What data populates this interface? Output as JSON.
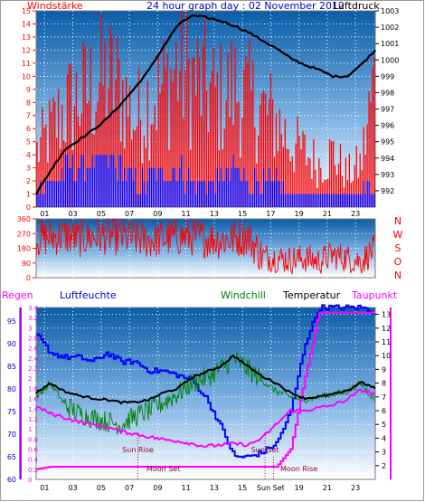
{
  "chart_data": [
    {
      "type": "bar",
      "title": "24 hour graph day : 02 November 2012",
      "left_label": "Windstärke",
      "right_label": "Luftdruck",
      "left_ylim": [
        0,
        15
      ],
      "left_ticks": [
        "0",
        "1",
        "2",
        "3",
        "4",
        "5",
        "6",
        "7",
        "8",
        "9",
        "10",
        "11",
        "12",
        "13",
        "14",
        "15"
      ],
      "right_ylim": [
        991,
        1003
      ],
      "right_ticks": [
        "992",
        "993",
        "994",
        "995",
        "996",
        "997",
        "998",
        "999",
        "1000",
        "1001",
        "1002",
        "1003"
      ],
      "x_ticks": [
        "01",
        "03",
        "05",
        "07",
        "09",
        "11",
        "13",
        "15",
        "17",
        "19",
        "21",
        "23"
      ],
      "grid": true,
      "series": [
        {
          "name": "Windstärke",
          "kind": "gust_bars",
          "color": "#ff0000",
          "x": [
            0,
            1,
            2,
            3,
            4,
            5,
            6,
            7,
            8,
            9,
            10,
            11,
            12,
            13,
            14,
            15,
            16,
            17,
            18,
            19,
            20,
            21,
            22,
            23,
            24
          ],
          "values": [
            5,
            7,
            9,
            10,
            11,
            12,
            11,
            8,
            10,
            11,
            13,
            12,
            11,
            10,
            11,
            10,
            9,
            8,
            6,
            5,
            4,
            5,
            3,
            4,
            12
          ]
        },
        {
          "name": "wind",
          "kind": "mean_bars",
          "color": "#0000ff",
          "x": [
            0,
            1,
            2,
            3,
            4,
            5,
            6,
            7,
            8,
            9,
            10,
            11,
            12,
            13,
            14,
            15,
            16,
            17,
            18,
            19,
            20,
            21,
            22,
            23,
            24
          ],
          "values": [
            2,
            2,
            3,
            3,
            4,
            4,
            3,
            2,
            2,
            3,
            3,
            2,
            2,
            2,
            3,
            2,
            2,
            2,
            1,
            1,
            1,
            1,
            1,
            1,
            2
          ]
        },
        {
          "name": "Luftdruck",
          "kind": "line",
          "color": "#000000",
          "x": [
            0,
            1,
            2,
            3,
            4,
            5,
            6,
            7,
            8,
            9,
            10,
            11,
            12,
            13,
            14,
            15,
            16,
            17,
            18,
            19,
            20,
            21,
            22,
            23,
            24
          ],
          "values": [
            991.8,
            993.2,
            994.5,
            995.1,
            995.7,
            996.4,
            997.3,
            998.3,
            999.4,
            1000.8,
            1002.1,
            1002.7,
            1002.6,
            1002.4,
            1002.1,
            1001.7,
            1001.2,
            1000.7,
            1000.1,
            999.7,
            999.4,
            999.0,
            999.0,
            999.7,
            1000.6
          ]
        }
      ]
    },
    {
      "type": "line",
      "title": "",
      "right_labels": [
        "N",
        "W",
        "S",
        "O",
        "N"
      ],
      "ylim": [
        0,
        360
      ],
      "y_ticks": [
        "0",
        "90",
        "180",
        "270",
        "360"
      ],
      "grid": true,
      "series": [
        {
          "name": "wind direction",
          "color": "#ff0000",
          "x": [
            0,
            1,
            2,
            3,
            4,
            5,
            6,
            7,
            8,
            9,
            10,
            11,
            12,
            13,
            14,
            15,
            16,
            17,
            18,
            19,
            20,
            21,
            22,
            23,
            24
          ],
          "values": [
            240,
            250,
            260,
            240,
            250,
            260,
            250,
            240,
            230,
            240,
            250,
            250,
            240,
            230,
            240,
            250,
            130,
            120,
            110,
            120,
            100,
            140,
            120,
            100,
            180
          ]
        }
      ]
    },
    {
      "type": "line",
      "labels": {
        "regen": "Regen",
        "luftfeuchte": "Luftfeuchte",
        "windchill": "Windchill",
        "temperatur": "Temperatur",
        "taupunkt": "Taupunkt"
      },
      "rain_ylim": [
        0,
        3.4
      ],
      "rain_ticks": [
        "0",
        "0.2",
        "0.4",
        "0.6",
        "0.8",
        "1",
        "1.2",
        "1.4",
        "1.6",
        "1.8",
        "2",
        "2.2",
        "2.4",
        "2.6",
        "2.8",
        "3",
        "3.2",
        "3.4"
      ],
      "humidity_ylim": [
        60,
        98
      ],
      "humidity_ticks": [
        "60",
        "65",
        "70",
        "75",
        "80",
        "85",
        "90",
        "95"
      ],
      "temp_ylim": [
        1,
        13.5
      ],
      "temp_ticks": [
        "2",
        "3",
        "4",
        "5",
        "6",
        "7",
        "8",
        "9",
        "10",
        "11",
        "12",
        "13"
      ],
      "x_ticks": [
        "01",
        "03",
        "05",
        "07",
        "09",
        "11",
        "13",
        "15",
        "Sun Set",
        "19",
        "21",
        "23"
      ],
      "annotations": [
        {
          "text": "Sun Rise",
          "x": 7.2
        },
        {
          "text": "Sun Set",
          "x": 16.2
        },
        {
          "text": "Moon Set",
          "x": 9.0
        },
        {
          "text": "Moon Rise",
          "x": 18.6
        }
      ],
      "series": [
        {
          "name": "Luftfeuchte",
          "color": "#0000ff",
          "axis": "humidity",
          "x": [
            0,
            1,
            2,
            3,
            4,
            5,
            6,
            7,
            8,
            9,
            10,
            11,
            12,
            13,
            14,
            15,
            16,
            17,
            18,
            19,
            20,
            21,
            22,
            23,
            24
          ],
          "values": [
            92,
            88,
            87,
            87,
            86,
            88,
            86,
            86,
            84,
            84,
            83,
            82,
            78,
            72,
            65,
            65,
            66,
            68,
            75,
            90,
            98,
            98,
            98,
            98,
            97
          ]
        },
        {
          "name": "Windchill",
          "color": "#008000",
          "axis": "temp",
          "x": [
            0,
            1,
            2,
            3,
            4,
            5,
            6,
            7,
            8,
            9,
            10,
            11,
            12,
            13,
            14,
            15,
            16,
            17,
            18,
            19,
            20,
            21,
            22,
            23,
            24
          ],
          "values": [
            7.0,
            8.0,
            6.5,
            5.8,
            5.5,
            5.2,
            5.0,
            5.6,
            6.0,
            6.6,
            7.2,
            8.0,
            8.4,
            9.0,
            9.8,
            9.0,
            8.2,
            7.4,
            7.0,
            6.8,
            7.0,
            7.2,
            7.4,
            8.0,
            6.7
          ]
        },
        {
          "name": "Temperatur",
          "color": "#000000",
          "axis": "temp",
          "x": [
            0,
            1,
            2,
            3,
            4,
            5,
            6,
            7,
            8,
            9,
            10,
            11,
            12,
            13,
            14,
            15,
            16,
            17,
            18,
            19,
            20,
            21,
            22,
            23,
            24
          ],
          "values": [
            7.3,
            8.0,
            7.4,
            7.1,
            6.9,
            6.8,
            6.6,
            6.6,
            6.8,
            7.3,
            7.6,
            8.4,
            8.8,
            9.2,
            10.0,
            9.2,
            8.5,
            8.0,
            7.3,
            6.9,
            7.0,
            7.2,
            7.4,
            8.1,
            7.6
          ]
        },
        {
          "name": "Taupunkt",
          "color": "#ff00ff",
          "axis": "temp",
          "x": [
            0,
            1,
            2,
            3,
            4,
            5,
            6,
            7,
            8,
            9,
            10,
            11,
            12,
            13,
            14,
            15,
            16,
            17,
            18,
            19,
            20,
            21,
            22,
            23,
            24
          ],
          "values": [
            6.3,
            5.8,
            5.5,
            5.2,
            5.0,
            4.8,
            4.5,
            4.3,
            4.1,
            3.9,
            3.8,
            3.6,
            3.4,
            3.5,
            3.6,
            3.5,
            4.0,
            5.0,
            6.0,
            6.0,
            6.2,
            6.4,
            6.8,
            7.5,
            7.2
          ]
        },
        {
          "name": "Regen",
          "color": "#ff00ff",
          "axis": "rain",
          "x": [
            0,
            1,
            2,
            3,
            4,
            5,
            6,
            7,
            8,
            9,
            10,
            11,
            12,
            13,
            14,
            15,
            16,
            17,
            18,
            19,
            20,
            21,
            22,
            23,
            24
          ],
          "values": [
            0.2,
            0.25,
            0.25,
            0.25,
            0.25,
            0.25,
            0.25,
            0.25,
            0.25,
            0.25,
            0.25,
            0.25,
            0.25,
            0.25,
            0.25,
            0.25,
            0.25,
            0.25,
            0.6,
            2.0,
            3.3,
            3.3,
            3.3,
            3.3,
            3.3
          ]
        }
      ]
    }
  ]
}
